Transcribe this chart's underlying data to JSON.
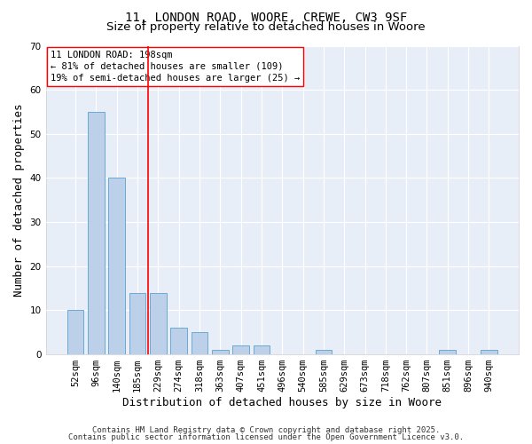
{
  "title1": "11, LONDON ROAD, WOORE, CREWE, CW3 9SF",
  "title2": "Size of property relative to detached houses in Woore",
  "xlabel": "Distribution of detached houses by size in Woore",
  "ylabel": "Number of detached properties",
  "categories": [
    "52sqm",
    "96sqm",
    "140sqm",
    "185sqm",
    "229sqm",
    "274sqm",
    "318sqm",
    "363sqm",
    "407sqm",
    "451sqm",
    "496sqm",
    "540sqm",
    "585sqm",
    "629sqm",
    "673sqm",
    "718sqm",
    "762sqm",
    "807sqm",
    "851sqm",
    "896sqm",
    "940sqm"
  ],
  "values": [
    10,
    55,
    40,
    14,
    14,
    6,
    5,
    1,
    2,
    2,
    0,
    0,
    1,
    0,
    0,
    0,
    0,
    0,
    1,
    0,
    1
  ],
  "bar_color": "#bdd0ea",
  "bar_edge_color": "#6aaad4",
  "bg_color": "#e8eef8",
  "grid_color": "#ffffff",
  "red_line_x": 3.5,
  "ylim": [
    0,
    70
  ],
  "yticks": [
    0,
    10,
    20,
    30,
    40,
    50,
    60,
    70
  ],
  "annotation_title": "11 LONDON ROAD: 198sqm",
  "annotation_line1": "← 81% of detached houses are smaller (109)",
  "annotation_line2": "19% of semi-detached houses are larger (25) →",
  "footer1": "Contains HM Land Registry data © Crown copyright and database right 2025.",
  "footer2": "Contains public sector information licensed under the Open Government Licence v3.0.",
  "title_fontsize": 10,
  "subtitle_fontsize": 9.5,
  "axis_label_fontsize": 9,
  "tick_fontsize": 7.5,
  "annotation_fontsize": 7.5,
  "footer_fontsize": 6.5
}
